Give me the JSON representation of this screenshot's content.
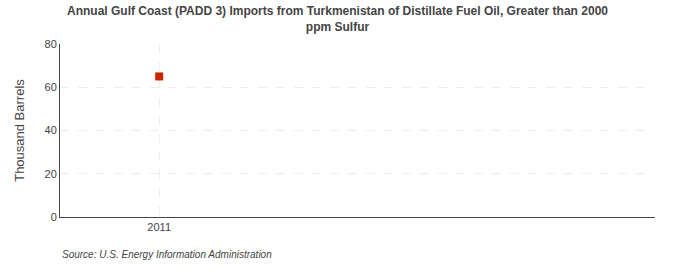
{
  "chart_data": {
    "type": "scatter",
    "title": "Annual Gulf Coast (PADD 3) Imports from Turkmenistan of Distillate Fuel Oil, Greater than 2000\nppm Sulfur",
    "ylabel": "Thousand Barrels",
    "annotation": "Source: U.S. Energy Information Administration",
    "x": [
      2011
    ],
    "values": [
      65
    ],
    "color": "#cc2200",
    "marker": "square",
    "xlim": [
      2010.5,
      2013.5
    ],
    "xticks": [
      2011
    ],
    "ylim": [
      0,
      80
    ],
    "yticks": [
      0,
      20,
      40,
      60,
      80
    ],
    "grid": true
  }
}
